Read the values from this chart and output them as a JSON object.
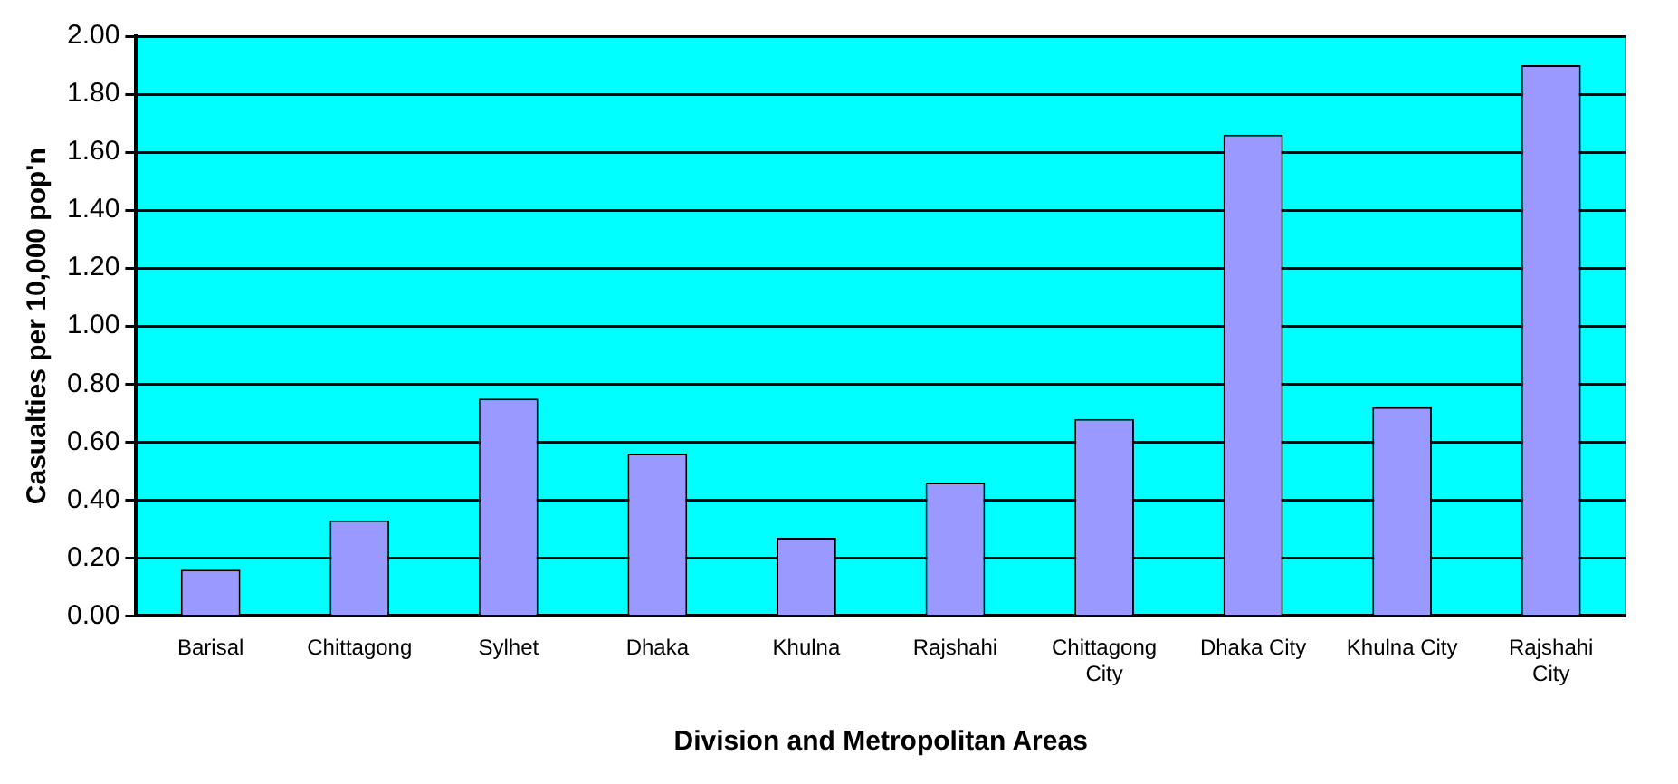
{
  "chart_data": {
    "type": "bar",
    "xlabel": "Division and Metropolitan Areas",
    "ylabel": "Casualties per 10,000 pop'n",
    "categories": [
      "Barisal",
      "Chittagong",
      "Sylhet",
      "Dhaka",
      "Khulna",
      "Rajshahi",
      "Chittagong City",
      "Dhaka City",
      "Khulna City",
      "Rajshahi City"
    ],
    "values": [
      0.16,
      0.33,
      0.75,
      0.56,
      0.27,
      0.46,
      0.68,
      1.66,
      0.72,
      1.9
    ],
    "color": "#9999ff",
    "ylim": [
      0,
      2
    ],
    "yticks": [
      {
        "value": 0,
        "label": "0.00"
      },
      {
        "value": 0.2,
        "label": "0.20"
      },
      {
        "value": 0.4,
        "label": "0.40"
      },
      {
        "value": 0.6,
        "label": "0.60"
      },
      {
        "value": 0.8,
        "label": "0.80"
      },
      {
        "value": 1,
        "label": "1.00"
      },
      {
        "value": 1.2,
        "label": "1.20"
      },
      {
        "value": 1.4,
        "label": "1.40"
      },
      {
        "value": 1.6,
        "label": "1.60"
      },
      {
        "value": 1.8,
        "label": "1.80"
      },
      {
        "value": 2,
        "label": "2.00"
      }
    ],
    "grid": "y",
    "legend": false
  }
}
